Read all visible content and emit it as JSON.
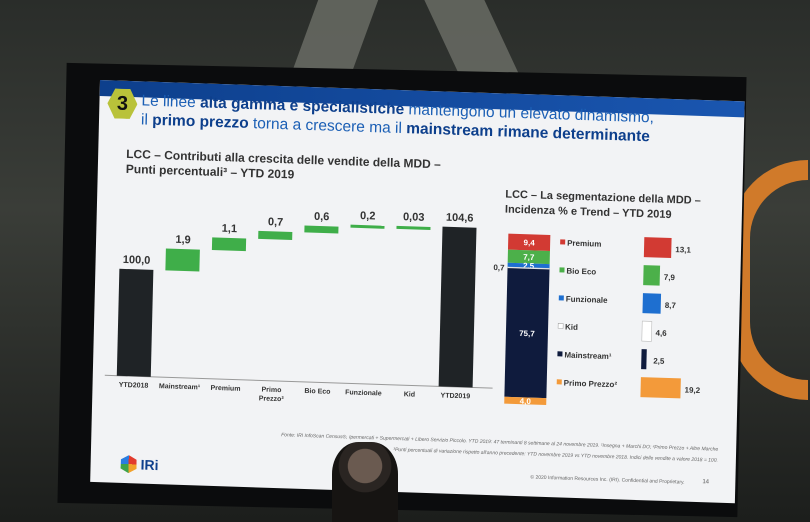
{
  "slide": {
    "number": "3",
    "headline": {
      "p1": "Le linee ",
      "b1": "alta gamma e specialistiche",
      "p2": " mantengono un elevato dinamismo,",
      "p3": "il ",
      "b2": "primo prezzo",
      "p4": " torna a crescere ma il ",
      "b3": "mainstream rimane determinante"
    },
    "left_title_1": "LCC – Contributi alla crescita delle vendite della MDD –",
    "left_title_2": "Punti percentuali³ – YTD 2019",
    "right_title_1": "LCC – La segmentazione della MDD –",
    "right_title_2": "Incidenza % e Trend – YTD 2019",
    "source_1": "Fonte: IRI InfoScan Census®, Ipermercati + Supermercati + Libero Servizio Piccolo. YTD 2019: 47 terminanti 8 settimane al 24 novembre 2019. ¹Insegna + Marchi DO; ²Primo Prezzo + Altre Marche",
    "source_2": "³Punti percentuali di variazione rispetto all'anno precedente: YTD novembre 2019 vs YTD novembre 2018. Indici delle vendite a valore 2018 = 100.",
    "brand": "IRi",
    "copyright": "© 2020 Information Resources Inc. (IRI). Confidential and Proprietary.",
    "page": "14"
  },
  "chart_data": [
    {
      "type": "bar",
      "subtype": "waterfall",
      "title": "LCC – Contributi alla crescita delle vendite della MDD – Punti percentuali³ – YTD 2019",
      "categories": [
        "YTD2018",
        "Mainstream¹",
        "Premium",
        "Primo Prezzo²",
        "Bio Eco",
        "Funzionale",
        "Kid",
        "YTD2019"
      ],
      "values": [
        100.0,
        1.9,
        1.1,
        0.7,
        0.6,
        0.2,
        0.03,
        104.6
      ],
      "labels": [
        "100,0",
        "1,9",
        "1,1",
        "0,7",
        "0,6",
        "0,2",
        "0,03",
        "104,6"
      ],
      "colors": {
        "total": "#1f2326",
        "step": "#3fae49"
      }
    },
    {
      "type": "bar",
      "subtype": "stacked + horizontal trend",
      "title": "LCC – La segmentazione della MDD – Incidenza % e Trend – YTD 2019",
      "segments": [
        {
          "name": "Premium",
          "share": 9.4,
          "share_label": "9,4",
          "trend": 13.1,
          "trend_label": "13,1",
          "color": "#d23a33"
        },
        {
          "name": "Bio Eco",
          "share": 7.7,
          "share_label": "7,7",
          "trend": 7.9,
          "trend_label": "7,9",
          "color": "#4cb04a"
        },
        {
          "name": "Funzionale",
          "share": 2.5,
          "share_label": "2,5",
          "trend": 8.7,
          "trend_label": "8,7",
          "color": "#1e6fd0"
        },
        {
          "name": "Kid",
          "share": 0.7,
          "share_label": "0,7",
          "trend": 4.6,
          "trend_label": "4,6",
          "color": "#ffffff"
        },
        {
          "name": "Mainstream¹",
          "share": 75.7,
          "share_label": "75,7",
          "trend": 2.5,
          "trend_label": "2,5",
          "color": "#0f1b3d"
        },
        {
          "name": "Primo Prezzo²",
          "share": 4.0,
          "share_label": "4,0",
          "trend": 19.2,
          "trend_label": "19,2",
          "color": "#f39a3a"
        }
      ]
    }
  ]
}
